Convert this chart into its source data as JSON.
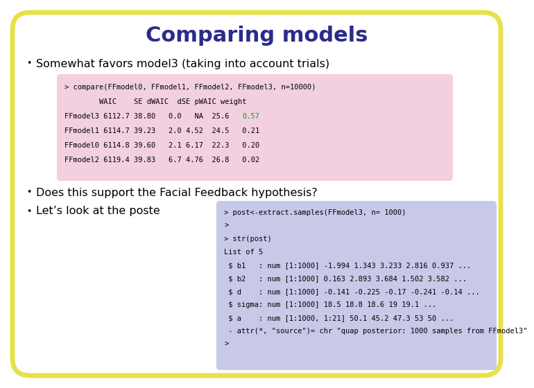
{
  "title": "Comparing models",
  "title_color": "#2b2b8c",
  "title_fontsize": 22,
  "border_color": "#e8e04a",
  "slide_bg": "#ffffff",
  "bullet1": "Somewhat favors model3 (taking into account trials)",
  "bullet2": "Does this support the Facial Feedback hypothesis?",
  "bullet3": "Let’s look at the poste",
  "bullet_color": "#000000",
  "bullet_fontsize": 11.5,
  "code_box1_bg": "#f2d0e0",
  "code_box1_lines": [
    "> compare(FFmodel0, FFmodel1, FFmodel2, FFmodel3, n=10000)",
    "        WAIC    SE dWAIC  dSE pWAIC weight",
    "FFmodel3 6112.7 38.80   0.0   NA  25.6   0.57",
    "FFmodel1 6114.7 39.23   2.0 4.52  24.5   0.21",
    "FFmodel0 6114.8 39.60   2.1 6.17  22.3   0.20",
    "FFmodel2 6119.4 39.83   6.7 4.76  26.8   0.02"
  ],
  "code_box1_color": "#000000",
  "code_box1_highlight_color": "#00aa00",
  "code_box2_bg": "#c8c8e8",
  "code_box2_lines": [
    "> post<-extract.samples(FFmodel3, n= 1000)",
    ">",
    "> str(post)",
    "List of 5",
    " $ b1   : num [1:1000] -1.994 1.343 3.233 2.816 0.937 ...",
    " $ b2   : num [1:1000] 0.163 2.893 3.684 1.502 3.582 ...",
    " $ d    : num [1:1000] -0.141 -0.225 -0.17 -0.241 -0.14 ...",
    " $ sigma: num [1:1000] 18.5 18.8 18.6 19 19.1 ...",
    " $ a    : num [1:1000, 1:21] 50.1 45.2 47.3 53 50 ...",
    " - attr(*, \"source\")= chr \"quap posterior: 1000 samples from FFmodel3\"",
    ">"
  ],
  "code_box2_color": "#000000",
  "code_fontsize": 7.5
}
